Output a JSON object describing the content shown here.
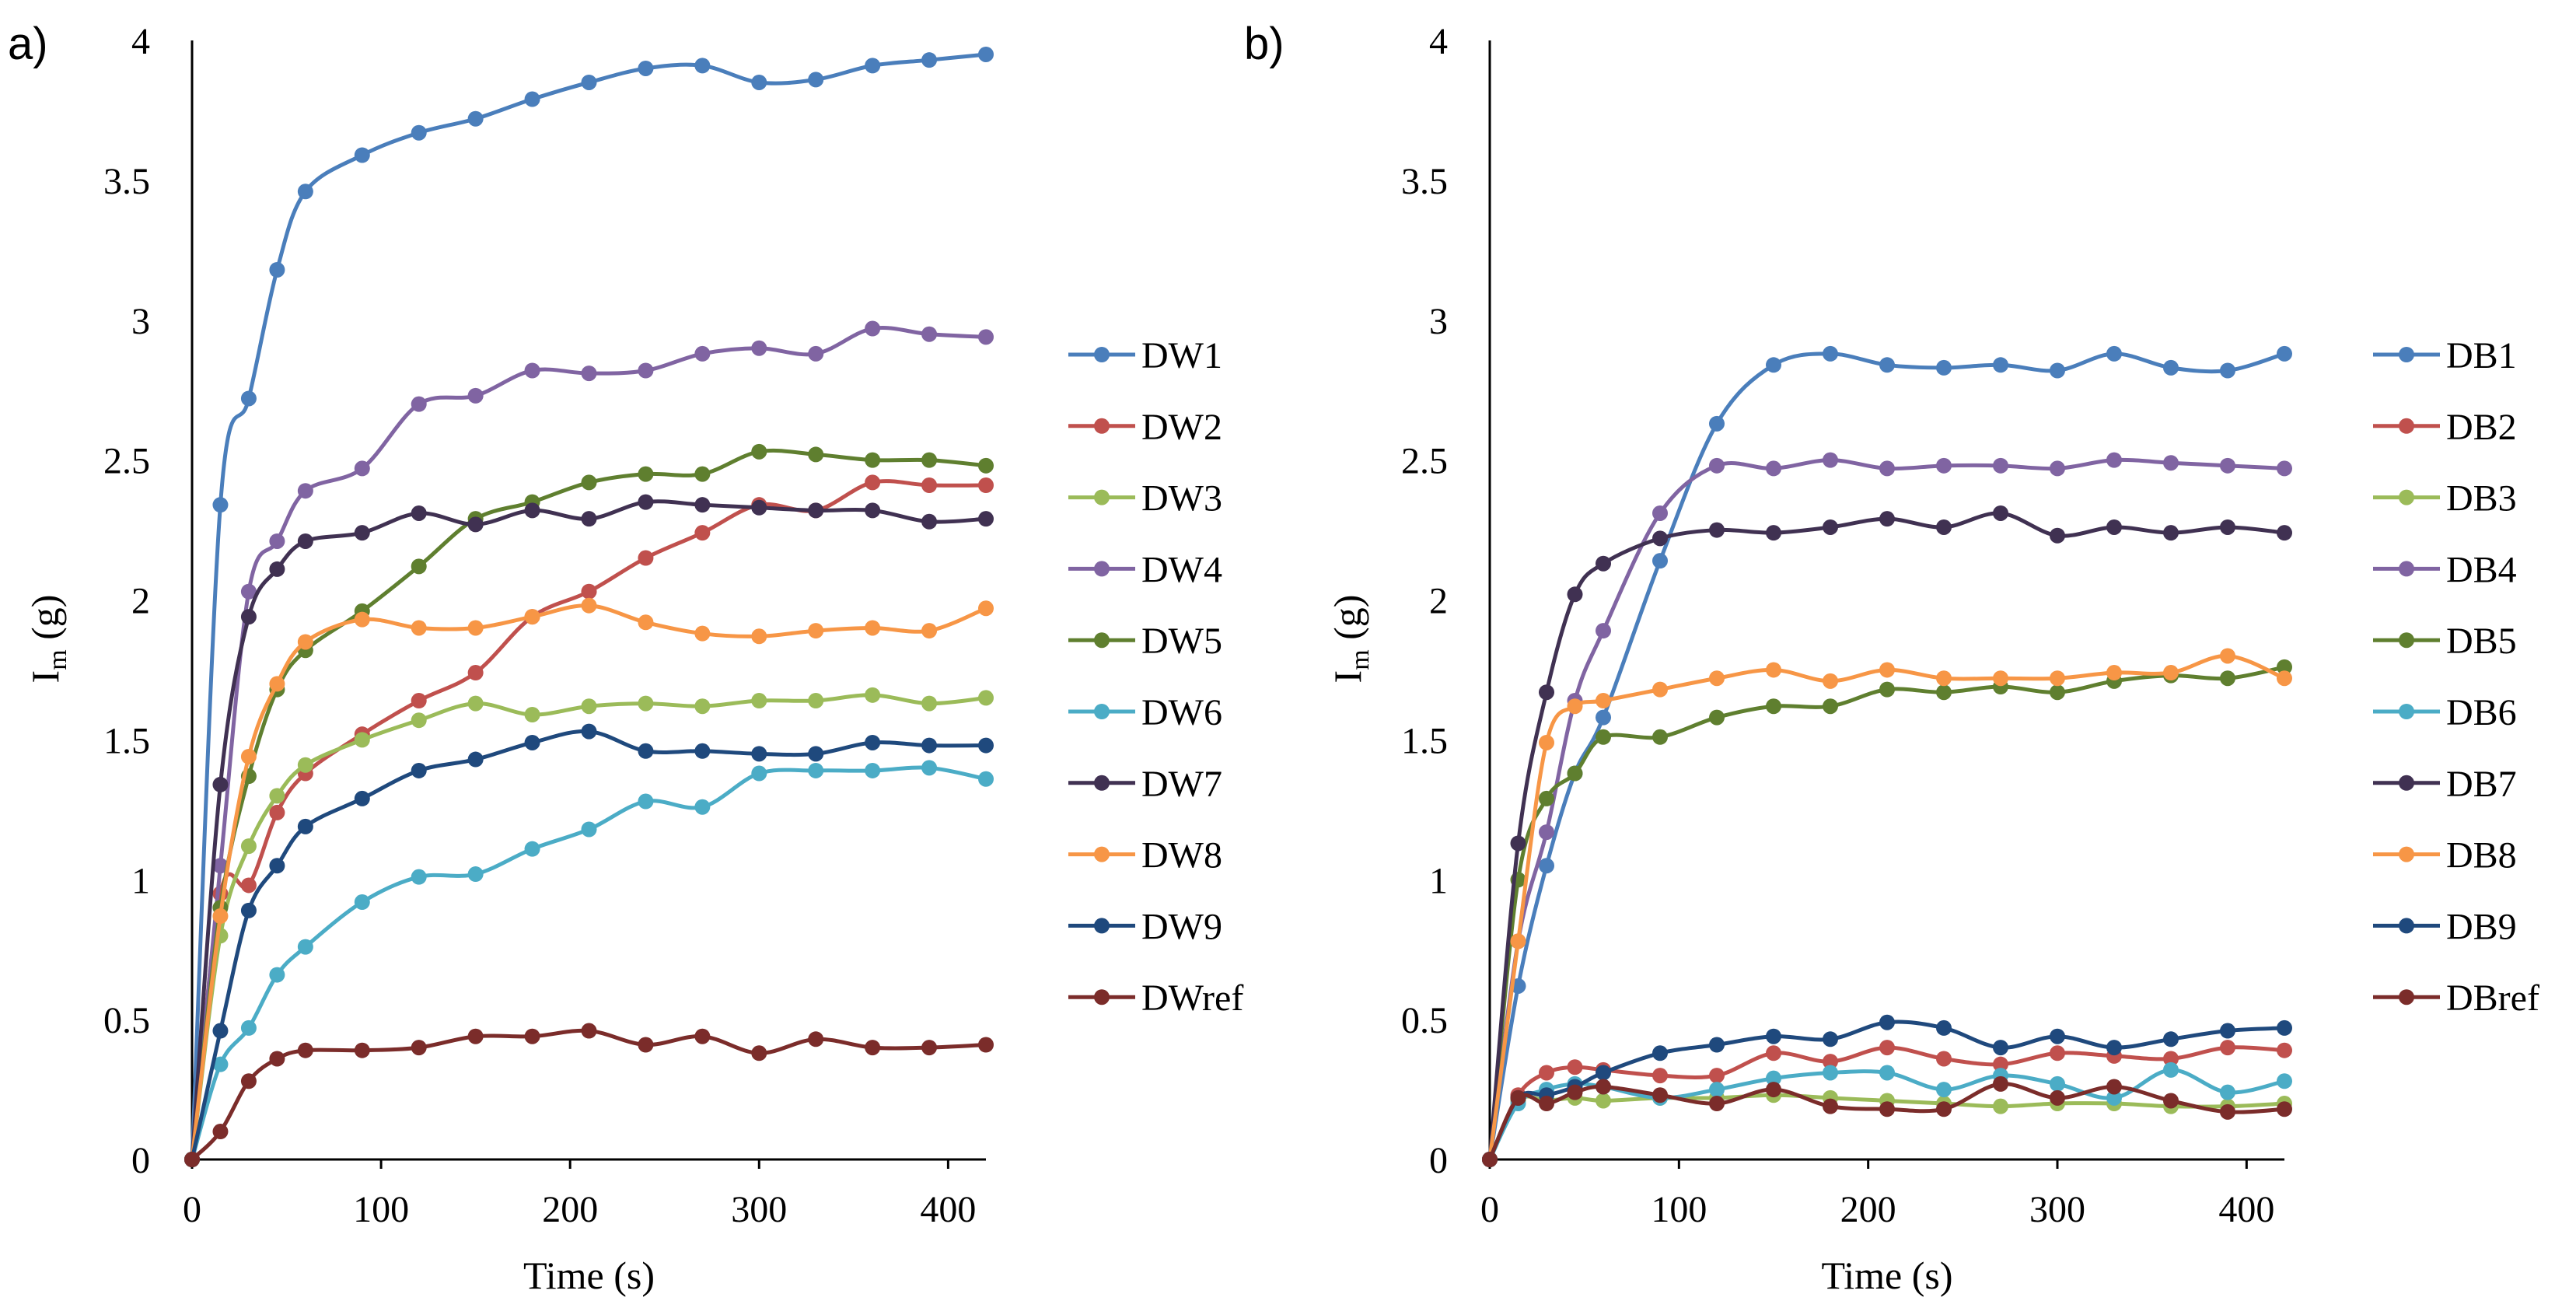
{
  "panels": [
    {
      "letter": "a)"
    },
    {
      "letter": "b)"
    }
  ],
  "chart_data": [
    {
      "type": "line",
      "panel": "a)",
      "xlabel": "Time (s)",
      "ylabel_main": "I",
      "ylabel_sub": "m",
      "ylabel_unit": "(g)",
      "xlim": [
        0,
        420
      ],
      "ylim": [
        0,
        4
      ],
      "x_ticks": [
        "0",
        "100",
        "200",
        "300",
        "400"
      ],
      "x_tick_values": [
        0,
        100,
        200,
        300,
        400
      ],
      "y_ticks": [
        "0",
        "0.5",
        "1",
        "1.5",
        "2",
        "2.5",
        "3",
        "3.5",
        "4"
      ],
      "y_tick_values": [
        0,
        0.5,
        1,
        1.5,
        2,
        2.5,
        3,
        3.5,
        4
      ],
      "grid": false,
      "legend_position": "right",
      "x": [
        0,
        15,
        30,
        45,
        60,
        90,
        120,
        150,
        180,
        210,
        240,
        270,
        300,
        330,
        360,
        390,
        420
      ],
      "series": [
        {
          "name": "DW1",
          "color": "#4a7ebb",
          "values": [
            0,
            2.34,
            2.72,
            3.18,
            3.46,
            3.59,
            3.67,
            3.72,
            3.79,
            3.85,
            3.9,
            3.91,
            3.85,
            3.86,
            3.91,
            3.93,
            3.95
          ]
        },
        {
          "name": "DW2",
          "color": "#c0504d",
          "values": [
            0,
            0.95,
            0.98,
            1.24,
            1.38,
            1.52,
            1.64,
            1.74,
            1.94,
            2.03,
            2.15,
            2.24,
            2.34,
            2.32,
            2.42,
            2.41,
            2.41
          ]
        },
        {
          "name": "DW3",
          "color": "#9bbb59",
          "values": [
            0,
            0.8,
            1.12,
            1.3,
            1.41,
            1.5,
            1.57,
            1.63,
            1.59,
            1.62,
            1.63,
            1.62,
            1.64,
            1.64,
            1.66,
            1.63,
            1.65
          ]
        },
        {
          "name": "DW4",
          "color": "#8064a2",
          "values": [
            0,
            1.05,
            2.03,
            2.21,
            2.39,
            2.47,
            2.7,
            2.73,
            2.82,
            2.81,
            2.82,
            2.88,
            2.9,
            2.88,
            2.97,
            2.95,
            2.94
          ]
        },
        {
          "name": "DW5",
          "color": "#5f7f2f",
          "values": [
            0,
            0.9,
            1.37,
            1.68,
            1.82,
            1.96,
            2.12,
            2.29,
            2.35,
            2.42,
            2.45,
            2.45,
            2.53,
            2.52,
            2.5,
            2.5,
            2.48
          ]
        },
        {
          "name": "DW6",
          "color": "#4bacc6",
          "values": [
            0,
            0.34,
            0.47,
            0.66,
            0.76,
            0.92,
            1.01,
            1.02,
            1.11,
            1.18,
            1.28,
            1.26,
            1.38,
            1.39,
            1.39,
            1.4,
            1.36
          ]
        },
        {
          "name": "DW7",
          "color": "#403152",
          "values": [
            0,
            1.34,
            1.94,
            2.11,
            2.21,
            2.24,
            2.31,
            2.27,
            2.32,
            2.29,
            2.35,
            2.34,
            2.33,
            2.32,
            2.32,
            2.28,
            2.29
          ]
        },
        {
          "name": "DW8",
          "color": "#f79646",
          "values": [
            0,
            0.87,
            1.44,
            1.7,
            1.85,
            1.93,
            1.9,
            1.9,
            1.94,
            1.98,
            1.92,
            1.88,
            1.87,
            1.89,
            1.9,
            1.89,
            1.97
          ]
        },
        {
          "name": "DW9",
          "color": "#1f497d",
          "values": [
            0,
            0.46,
            0.89,
            1.05,
            1.19,
            1.29,
            1.39,
            1.43,
            1.49,
            1.53,
            1.46,
            1.46,
            1.45,
            1.45,
            1.49,
            1.48,
            1.48
          ]
        },
        {
          "name": "DWref",
          "color": "#7b2c2a",
          "values": [
            0,
            0.1,
            0.28,
            0.36,
            0.39,
            0.39,
            0.4,
            0.44,
            0.44,
            0.46,
            0.41,
            0.44,
            0.38,
            0.43,
            0.4,
            0.4,
            0.41
          ]
        }
      ]
    },
    {
      "type": "line",
      "panel": "b)",
      "xlabel": "Time (s)",
      "ylabel_main": "I",
      "ylabel_sub": "m",
      "ylabel_unit": "(g)",
      "xlim": [
        0,
        420
      ],
      "ylim": [
        0,
        4
      ],
      "x_ticks": [
        "0",
        "100",
        "200",
        "300",
        "400"
      ],
      "x_tick_values": [
        0,
        100,
        200,
        300,
        400
      ],
      "y_ticks": [
        "0",
        "0.5",
        "1",
        "1.5",
        "2",
        "2.5",
        "3",
        "3.5",
        "4"
      ],
      "y_tick_values": [
        0,
        0.5,
        1,
        1.5,
        2,
        2.5,
        3,
        3.5,
        4
      ],
      "grid": false,
      "legend_position": "right",
      "x": [
        0,
        15,
        30,
        45,
        60,
        90,
        120,
        150,
        180,
        210,
        240,
        270,
        300,
        330,
        360,
        390,
        420
      ],
      "series": [
        {
          "name": "DB1",
          "color": "#4a7ebb",
          "values": [
            0,
            0.62,
            1.05,
            1.38,
            1.58,
            2.14,
            2.63,
            2.84,
            2.88,
            2.84,
            2.83,
            2.84,
            2.82,
            2.88,
            2.83,
            2.82,
            2.88
          ]
        },
        {
          "name": "DB2",
          "color": "#c0504d",
          "values": [
            0,
            0.23,
            0.31,
            0.33,
            0.32,
            0.3,
            0.3,
            0.38,
            0.35,
            0.4,
            0.36,
            0.34,
            0.38,
            0.37,
            0.36,
            0.4,
            0.39
          ]
        },
        {
          "name": "DB3",
          "color": "#9bbb59",
          "values": [
            0,
            0.21,
            0.21,
            0.22,
            0.21,
            0.22,
            0.22,
            0.23,
            0.22,
            0.21,
            0.2,
            0.19,
            0.2,
            0.2,
            0.19,
            0.19,
            0.2
          ]
        },
        {
          "name": "DB4",
          "color": "#8064a2",
          "values": [
            0,
            0.78,
            1.17,
            1.64,
            1.89,
            2.31,
            2.48,
            2.47,
            2.5,
            2.47,
            2.48,
            2.48,
            2.47,
            2.5,
            2.49,
            2.48,
            2.47
          ]
        },
        {
          "name": "DB5",
          "color": "#5f7f2f",
          "values": [
            0,
            1.0,
            1.29,
            1.38,
            1.51,
            1.51,
            1.58,
            1.62,
            1.62,
            1.68,
            1.67,
            1.69,
            1.67,
            1.71,
            1.73,
            1.72,
            1.76
          ]
        },
        {
          "name": "DB6",
          "color": "#4bacc6",
          "values": [
            0,
            0.2,
            0.25,
            0.27,
            0.26,
            0.22,
            0.25,
            0.29,
            0.31,
            0.31,
            0.25,
            0.3,
            0.27,
            0.22,
            0.32,
            0.24,
            0.28
          ]
        },
        {
          "name": "DB7",
          "color": "#403152",
          "values": [
            0,
            1.13,
            1.67,
            2.02,
            2.13,
            2.22,
            2.25,
            2.24,
            2.26,
            2.29,
            2.26,
            2.31,
            2.23,
            2.26,
            2.24,
            2.26,
            2.24
          ]
        },
        {
          "name": "DB8",
          "color": "#f79646",
          "values": [
            0,
            0.78,
            1.49,
            1.62,
            1.64,
            1.68,
            1.72,
            1.75,
            1.71,
            1.75,
            1.72,
            1.72,
            1.72,
            1.74,
            1.74,
            1.8,
            1.72
          ]
        },
        {
          "name": "DB9",
          "color": "#1f497d",
          "values": [
            0,
            0.22,
            0.23,
            0.26,
            0.31,
            0.38,
            0.41,
            0.44,
            0.43,
            0.49,
            0.47,
            0.4,
            0.44,
            0.4,
            0.43,
            0.46,
            0.47
          ]
        },
        {
          "name": "DBref",
          "color": "#7b2c2a",
          "values": [
            0,
            0.22,
            0.2,
            0.24,
            0.26,
            0.23,
            0.2,
            0.25,
            0.19,
            0.18,
            0.18,
            0.27,
            0.22,
            0.26,
            0.21,
            0.17,
            0.18
          ]
        }
      ]
    }
  ]
}
